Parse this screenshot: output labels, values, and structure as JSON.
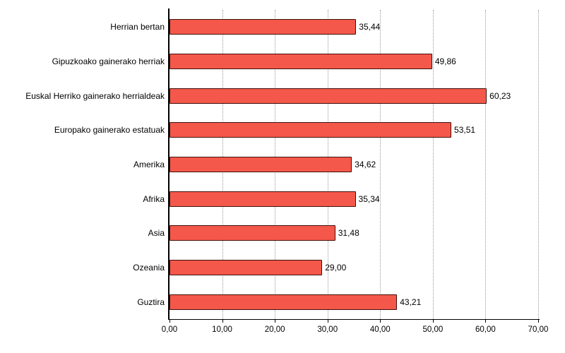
{
  "chart_data": {
    "type": "bar",
    "orientation": "horizontal",
    "title": "",
    "xlabel": "",
    "ylabel": "",
    "categories": [
      "Herrian bertan",
      "Gipuzkoako gainerako herriak",
      "Euskal Herriko gainerako herrialdeak",
      "Europako gainerako estatuak",
      "Amerika",
      "Afrika",
      "Asia",
      "Ozeania",
      "Guztira"
    ],
    "values": [
      35.44,
      49.86,
      60.23,
      53.51,
      34.62,
      35.34,
      31.48,
      29.0,
      43.21
    ],
    "value_labels": [
      "35,44",
      "49,86",
      "60,23",
      "53,51",
      "34,62",
      "35,34",
      "31,48",
      "29,00",
      "43,21"
    ],
    "xlim": [
      0,
      70
    ],
    "x_ticks": [
      0,
      10,
      20,
      30,
      40,
      50,
      60,
      70
    ],
    "x_tick_labels": [
      "0,00",
      "10,00",
      "20,00",
      "30,00",
      "40,00",
      "50,00",
      "60,00",
      "70,00"
    ],
    "grid": "dotted-vertical",
    "legend": "none",
    "bar_color": "#F4584B",
    "bar_border_color": "#40100A",
    "axis_color": "#000000",
    "background_color": "#ffffff"
  }
}
